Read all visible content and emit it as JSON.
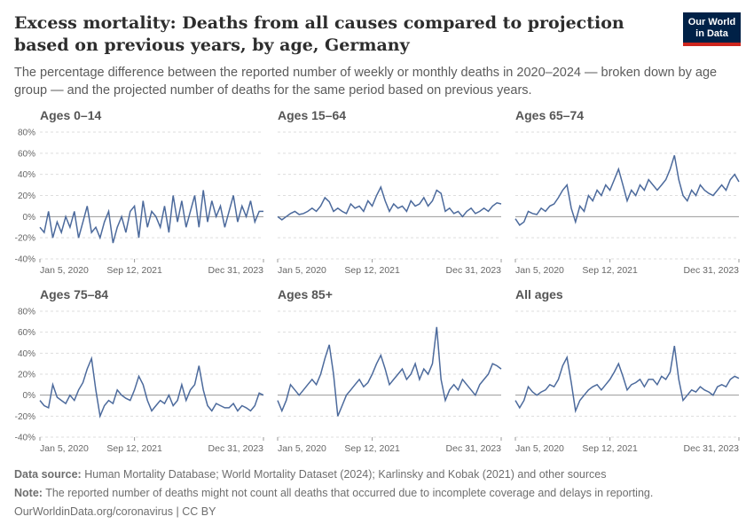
{
  "title": "Excess mortality: Deaths from all causes compared to projection based on previous years, by age, Germany",
  "subtitle": "The percentage difference between the reported number of weekly or monthly deaths in 2020–2024 — broken down by age group — and the projected number of deaths for the same period based on previous years.",
  "logo": [
    "Our World",
    "in Data"
  ],
  "footer": {
    "source_label": "Data source:",
    "source": "Human Mortality Database; World Mortality Dataset (2024); Karlinsky and Kobak (2021) and other sources",
    "note_label": "Note:",
    "note": "The reported number of deaths might not count all deaths that occurred due to incomplete coverage and delays in reporting.",
    "credit": "OurWorldinData.org/coronavirus | CC BY"
  },
  "dates": [
    "2020-01-05",
    "2020-02-02",
    "2020-03-01",
    "2020-03-29",
    "2020-04-26",
    "2020-05-24",
    "2020-06-21",
    "2020-07-19",
    "2020-08-16",
    "2020-09-13",
    "2020-10-11",
    "2020-11-08",
    "2020-12-06",
    "2021-01-03",
    "2021-01-31",
    "2021-02-28",
    "2021-03-28",
    "2021-04-25",
    "2021-05-23",
    "2021-06-20",
    "2021-07-18",
    "2021-08-15",
    "2021-09-12",
    "2021-10-10",
    "2021-11-07",
    "2021-12-05",
    "2022-01-02",
    "2022-01-30",
    "2022-02-27",
    "2022-03-27",
    "2022-04-24",
    "2022-05-22",
    "2022-06-19",
    "2022-07-17",
    "2022-08-14",
    "2022-09-11",
    "2022-10-09",
    "2022-11-06",
    "2022-12-04",
    "2023-01-01",
    "2023-01-29",
    "2023-02-26",
    "2023-03-26",
    "2023-04-23",
    "2023-05-21",
    "2023-06-18",
    "2023-07-16",
    "2023-08-13",
    "2023-09-10",
    "2023-10-08",
    "2023-11-05",
    "2023-12-03",
    "2023-12-31"
  ],
  "xlim": [
    "2020-01-05",
    "2023-12-31"
  ],
  "xticks": [
    {
      "value": "2020-01-05",
      "label": "Jan 5, 2020"
    },
    {
      "value": "2021-09-12",
      "label": "Sep 12, 2021"
    },
    {
      "value": "2023-12-31",
      "label": "Dec 31, 2023"
    }
  ],
  "ylim": [
    -40,
    80
  ],
  "yticks": [
    {
      "value": -40,
      "label": "-40%"
    },
    {
      "value": -20,
      "label": "-20%"
    },
    {
      "value": 0,
      "label": "0%"
    },
    {
      "value": 20,
      "label": "20%"
    },
    {
      "value": 40,
      "label": "40%"
    },
    {
      "value": 60,
      "label": "60%"
    },
    {
      "value": 80,
      "label": "80%"
    }
  ],
  "chart_data": [
    {
      "type": "line",
      "title": "Ages 0–14",
      "color": "#4c6a9c",
      "values": [
        -10,
        -15,
        5,
        -20,
        -5,
        -15,
        0,
        -10,
        5,
        -20,
        -5,
        10,
        -15,
        -10,
        -20,
        -5,
        5,
        -25,
        -10,
        0,
        -15,
        5,
        10,
        -20,
        15,
        -10,
        5,
        0,
        -10,
        10,
        -15,
        20,
        -5,
        15,
        -10,
        5,
        20,
        -10,
        25,
        -5,
        15,
        0,
        10,
        -10,
        5,
        20,
        -5,
        10,
        0,
        15,
        -5,
        5,
        5
      ]
    },
    {
      "type": "line",
      "title": "Ages 15–64",
      "color": "#4c6a9c",
      "values": [
        0,
        -3,
        0,
        3,
        5,
        2,
        3,
        5,
        8,
        5,
        10,
        18,
        14,
        5,
        8,
        5,
        3,
        12,
        8,
        10,
        5,
        15,
        10,
        20,
        28,
        15,
        5,
        12,
        8,
        10,
        5,
        15,
        10,
        12,
        18,
        10,
        15,
        25,
        22,
        5,
        8,
        3,
        5,
        0,
        5,
        8,
        3,
        5,
        8,
        5,
        10,
        13,
        12
      ]
    },
    {
      "type": "line",
      "title": "Ages 65–74",
      "color": "#4c6a9c",
      "values": [
        -2,
        -8,
        -5,
        5,
        3,
        2,
        8,
        5,
        10,
        12,
        18,
        25,
        30,
        8,
        -5,
        10,
        5,
        20,
        15,
        25,
        20,
        30,
        25,
        35,
        45,
        30,
        15,
        25,
        20,
        30,
        25,
        35,
        30,
        25,
        30,
        35,
        45,
        58,
        35,
        20,
        15,
        25,
        20,
        30,
        25,
        22,
        20,
        25,
        30,
        25,
        35,
        40,
        33
      ]
    },
    {
      "type": "line",
      "title": "Ages 75–84",
      "color": "#4c6a9c",
      "values": [
        -5,
        -10,
        -12,
        10,
        -2,
        -5,
        -8,
        0,
        -5,
        5,
        12,
        25,
        35,
        5,
        -20,
        -10,
        -5,
        -8,
        5,
        0,
        -3,
        -5,
        5,
        18,
        10,
        -5,
        -15,
        -10,
        -5,
        -8,
        0,
        -10,
        -5,
        10,
        -5,
        5,
        10,
        28,
        5,
        -10,
        -15,
        -8,
        -10,
        -12,
        -12,
        -8,
        -15,
        -10,
        -12,
        -15,
        -10,
        2,
        0
      ]
    },
    {
      "type": "line",
      "title": "Ages 85+",
      "color": "#4c6a9c",
      "values": [
        -5,
        -15,
        -5,
        10,
        5,
        0,
        5,
        10,
        15,
        10,
        20,
        35,
        48,
        20,
        -20,
        -10,
        0,
        5,
        10,
        15,
        8,
        12,
        20,
        30,
        38,
        25,
        10,
        15,
        20,
        25,
        15,
        20,
        30,
        15,
        25,
        20,
        30,
        65,
        15,
        -5,
        5,
        10,
        5,
        15,
        10,
        5,
        0,
        10,
        15,
        20,
        30,
        28,
        25
      ]
    },
    {
      "type": "line",
      "title": "All ages",
      "color": "#4c6a9c",
      "values": [
        -5,
        -12,
        -5,
        8,
        3,
        0,
        3,
        5,
        10,
        8,
        15,
        28,
        36,
        12,
        -15,
        -5,
        0,
        5,
        8,
        10,
        5,
        10,
        15,
        22,
        30,
        18,
        5,
        10,
        12,
        15,
        8,
        15,
        15,
        10,
        18,
        15,
        22,
        47,
        15,
        -5,
        0,
        5,
        3,
        8,
        5,
        3,
        0,
        8,
        10,
        8,
        15,
        18,
        16
      ]
    }
  ]
}
